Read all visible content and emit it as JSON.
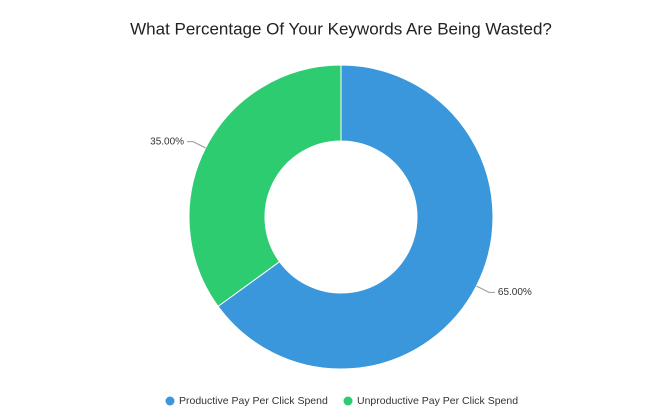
{
  "chart_data": {
    "type": "donut",
    "title": "What Percentage Of Your Keywords Are Being Wasted?",
    "categories": [
      "Productive Pay Per Click Spend",
      "Unproductive Pay Per Click Spend"
    ],
    "values": [
      65,
      35
    ],
    "value_labels": [
      "65.00%",
      "35.00%"
    ],
    "colors": [
      "#3a97dc",
      "#2ecc71"
    ],
    "legend": "bottom"
  }
}
